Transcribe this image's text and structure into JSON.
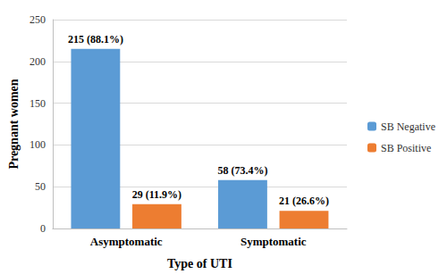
{
  "chart_data": {
    "type": "bar",
    "x_label": "Type of UTI",
    "y_label": "Pregnant women",
    "categories": [
      "Asymptomatic",
      "Symptomatic"
    ],
    "series": [
      {
        "name": "SB Negative",
        "color": "#5b9bd5",
        "values": [
          215,
          58
        ],
        "value_labels": [
          "215 (88.1%)",
          "58 (73.4%)"
        ]
      },
      {
        "name": "SB Positive",
        "color": "#ed7d31",
        "values": [
          29,
          21
        ],
        "value_labels": [
          "29 (11.9%)",
          "21 (26.6%)"
        ]
      }
    ],
    "ylim": [
      0,
      250
    ],
    "yticks": [
      0,
      50,
      100,
      150,
      200,
      250
    ],
    "grid": true,
    "legend": "right",
    "data_labels": true
  }
}
